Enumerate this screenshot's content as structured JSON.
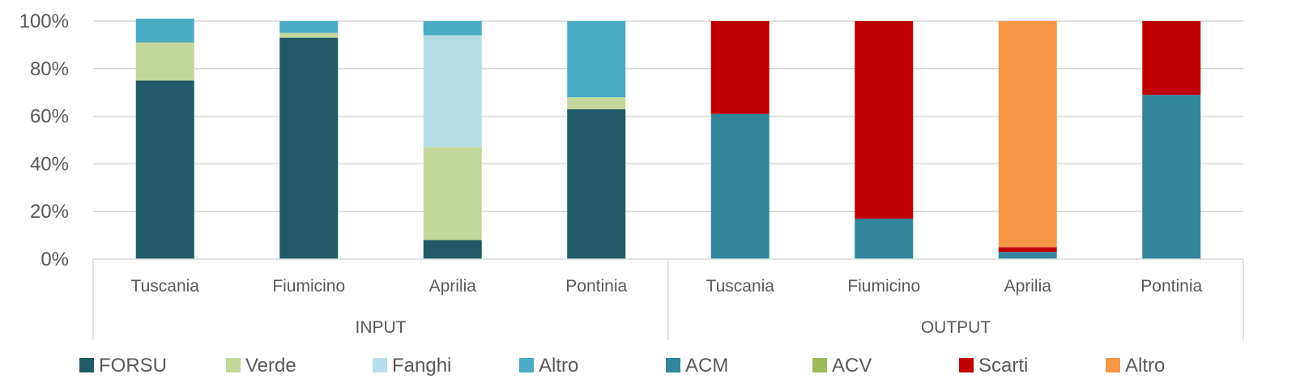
{
  "chart_data": {
    "type": "bar",
    "stacked": true,
    "percent": true,
    "ylim": [
      0,
      100
    ],
    "yticks": [
      "0%",
      "20%",
      "40%",
      "60%",
      "80%",
      "100%"
    ],
    "grid": true,
    "legend_position": "bottom",
    "groups": [
      {
        "label": "INPUT",
        "categories": [
          "Tuscania",
          "Fiumicino",
          "Aprilia",
          "Pontinia"
        ]
      },
      {
        "label": "OUTPUT",
        "categories": [
          "Tuscania",
          "Fiumicino",
          "Aprilia",
          "Pontinia"
        ]
      }
    ],
    "series": [
      {
        "name": "FORSU",
        "color": "#215968",
        "values": [
          75,
          93,
          8,
          63,
          0,
          0,
          0,
          0
        ]
      },
      {
        "name": "Verde",
        "color": "#c4d79b",
        "values": [
          16,
          2,
          39,
          5,
          0,
          0,
          0,
          0
        ]
      },
      {
        "name": "Fanghi",
        "color": "#b7dee8",
        "values": [
          0,
          0,
          47,
          0,
          0,
          0,
          0,
          0
        ]
      },
      {
        "name": "Altro",
        "color": "#4bacc6",
        "values": [
          10,
          5,
          6,
          32,
          0,
          0,
          0,
          0
        ]
      },
      {
        "name": "ACM",
        "color": "#31869b",
        "values": [
          0,
          0,
          0,
          0,
          61,
          17,
          3,
          69
        ]
      },
      {
        "name": "ACV",
        "color": "#9bbb59",
        "values": [
          0,
          0,
          0,
          0,
          0,
          0,
          0,
          0
        ]
      },
      {
        "name": "Scarti",
        "color": "#c00000",
        "values": [
          0,
          0,
          0,
          0,
          39,
          83,
          2,
          31
        ]
      },
      {
        "name": "Altro",
        "color": "#f79646",
        "values": [
          0,
          0,
          0,
          0,
          0,
          0,
          95,
          0
        ]
      }
    ]
  }
}
